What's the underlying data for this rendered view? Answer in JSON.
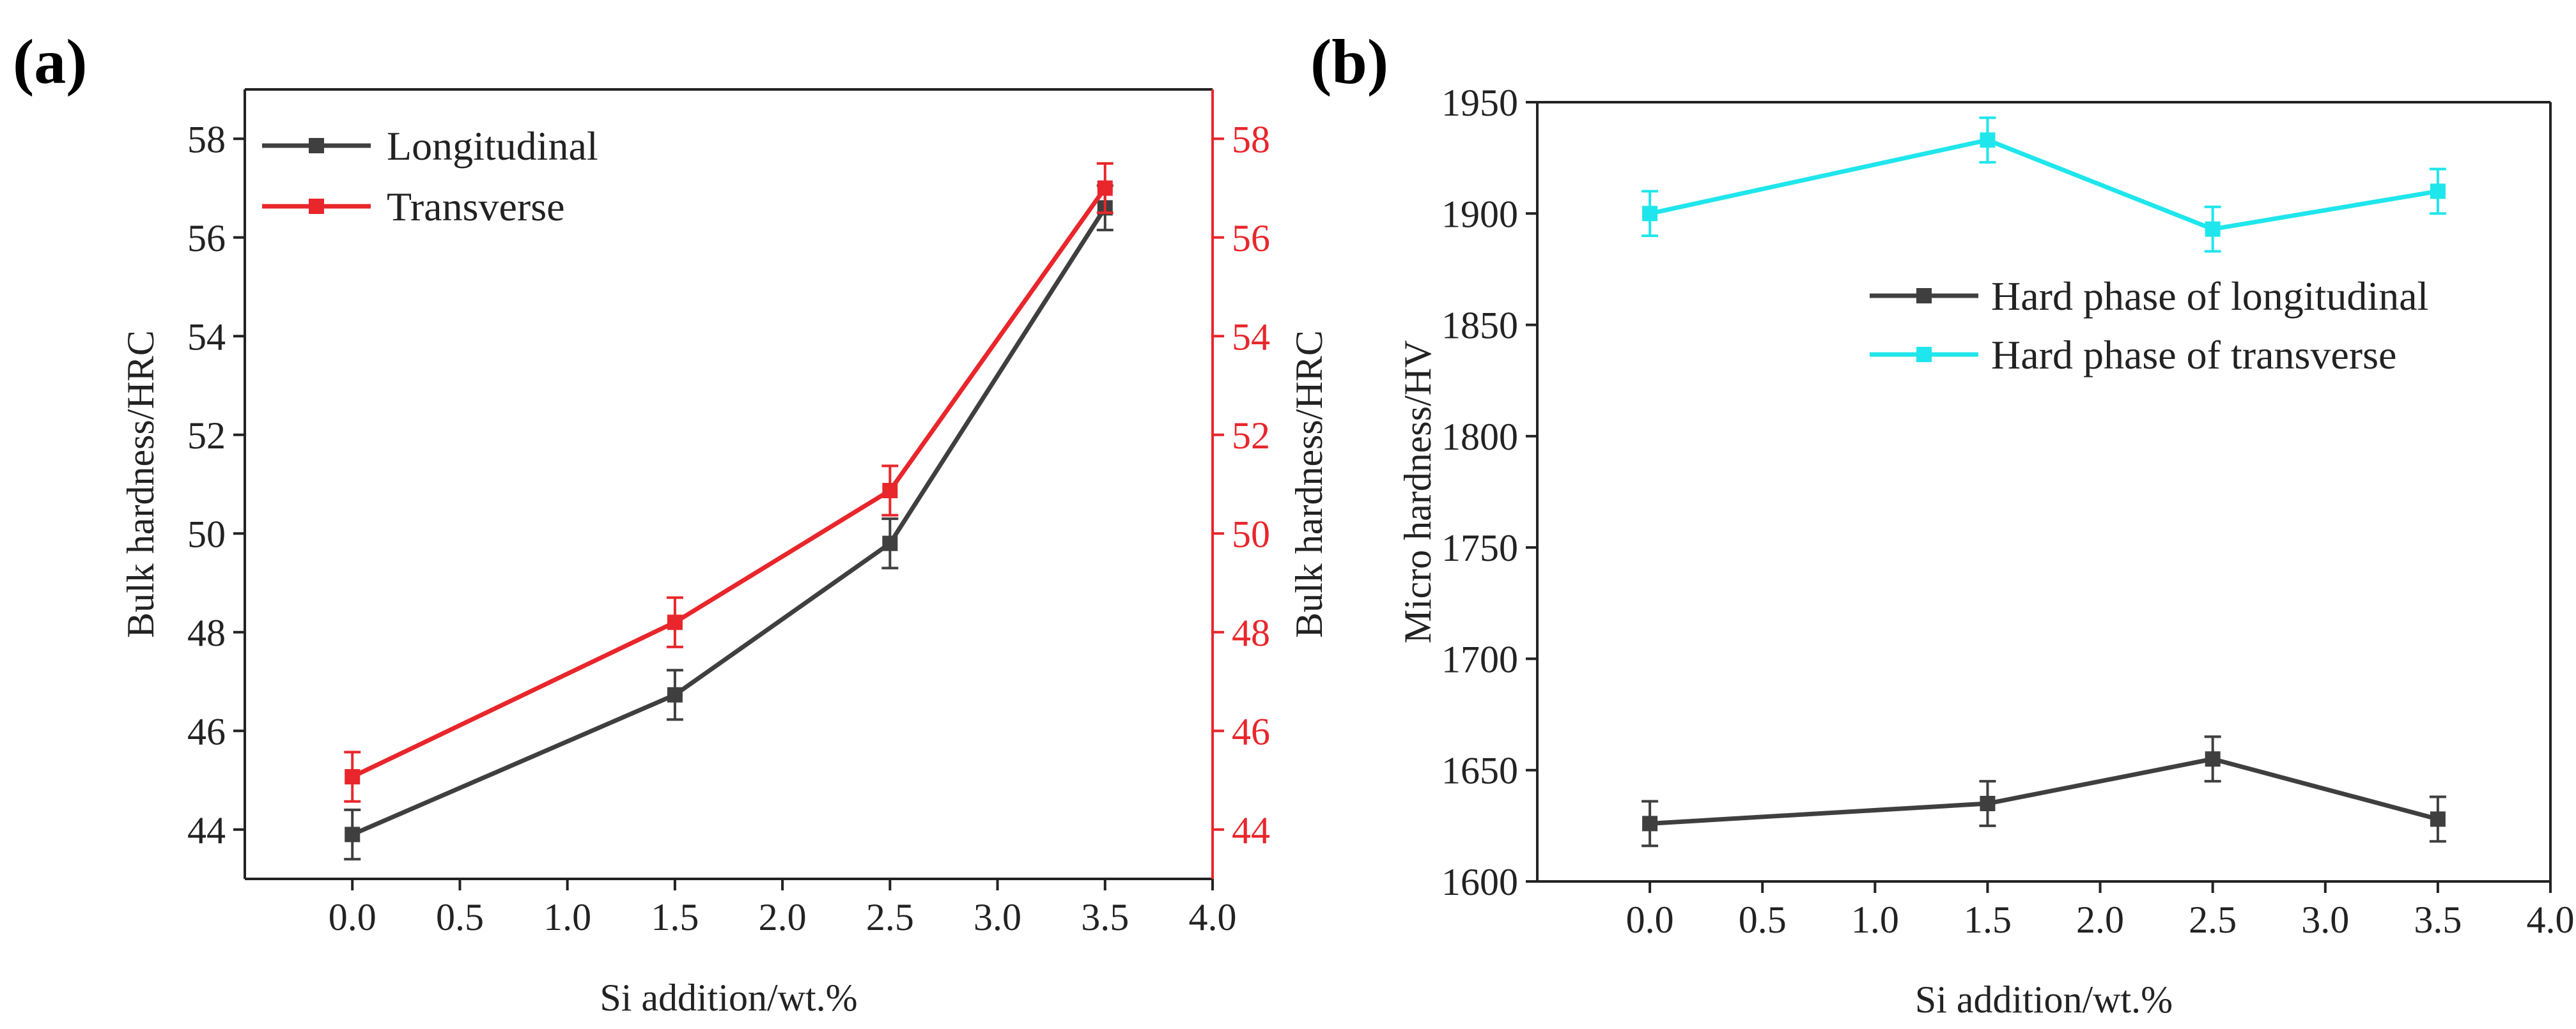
{
  "chart_data": [
    {
      "panel_label": "(a)",
      "type": "line",
      "xlabel": "Si addition/wt.%",
      "ylabel_left": "Bulk hardness/HRC",
      "ylabel_right": "Bulk hardness/HRC",
      "xlim": [
        -0.5,
        4.0
      ],
      "ylim": [
        43,
        59
      ],
      "xticks": [
        0.0,
        0.5,
        1.0,
        1.5,
        2.0,
        2.5,
        3.0,
        3.5,
        4.0
      ],
      "xtick_labels": [
        "0.0",
        "0.5",
        "1.0",
        "1.5",
        "2.0",
        "2.5",
        "3.0",
        "3.5",
        "4.0"
      ],
      "yticks": [
        44,
        46,
        48,
        50,
        52,
        54,
        56,
        58
      ],
      "ytick_labels": [
        "44",
        "46",
        "48",
        "50",
        "52",
        "54",
        "56",
        "58"
      ],
      "right_axis_color": "#e8262b",
      "legend_position": "top-left",
      "series": [
        {
          "name": "Longitudinal",
          "color": "#3f3f3f",
          "x": [
            0.0,
            1.5,
            2.5,
            3.5
          ],
          "y": [
            43.9,
            46.73,
            49.8,
            56.6
          ],
          "err": [
            0.5,
            0.5,
            0.5,
            0.45
          ]
        },
        {
          "name": "Transverse",
          "color": "#e8262b",
          "x": [
            0.0,
            1.5,
            2.5,
            3.5
          ],
          "y": [
            45.07,
            48.2,
            50.87,
            57.0
          ],
          "err": [
            0.5,
            0.5,
            0.5,
            0.5
          ]
        }
      ]
    },
    {
      "panel_label": "(b)",
      "type": "line",
      "xlabel": "Si addition/wt.%",
      "ylabel": "Micro hardness/HV",
      "xlim": [
        -0.5,
        4.0
      ],
      "ylim": [
        1600,
        1950
      ],
      "xticks": [
        0.0,
        0.5,
        1.0,
        1.5,
        2.0,
        2.5,
        3.0,
        3.5,
        4.0
      ],
      "xtick_labels": [
        "0.0",
        "0.5",
        "1.0",
        "1.5",
        "2.0",
        "2.5",
        "3.0",
        "3.5",
        "4.0"
      ],
      "yticks": [
        1600,
        1650,
        1700,
        1750,
        1800,
        1850,
        1900,
        1950
      ],
      "ytick_labels": [
        "1600",
        "1650",
        "1700",
        "1750",
        "1800",
        "1850",
        "1900",
        "1950"
      ],
      "legend_position": "center-right",
      "series": [
        {
          "name": "Hard phase of longitudinal",
          "color": "#3f3f3f",
          "x": [
            0.0,
            1.5,
            2.5,
            3.5
          ],
          "y": [
            1626,
            1635,
            1655,
            1628
          ],
          "err": [
            10,
            10,
            10,
            10
          ]
        },
        {
          "name": "Hard phase of transverse",
          "color": "#1fe6ec",
          "x": [
            0.0,
            1.5,
            2.5,
            3.5
          ],
          "y": [
            1900,
            1933,
            1893,
            1910
          ],
          "err": [
            10,
            10,
            10,
            10
          ]
        }
      ]
    }
  ]
}
